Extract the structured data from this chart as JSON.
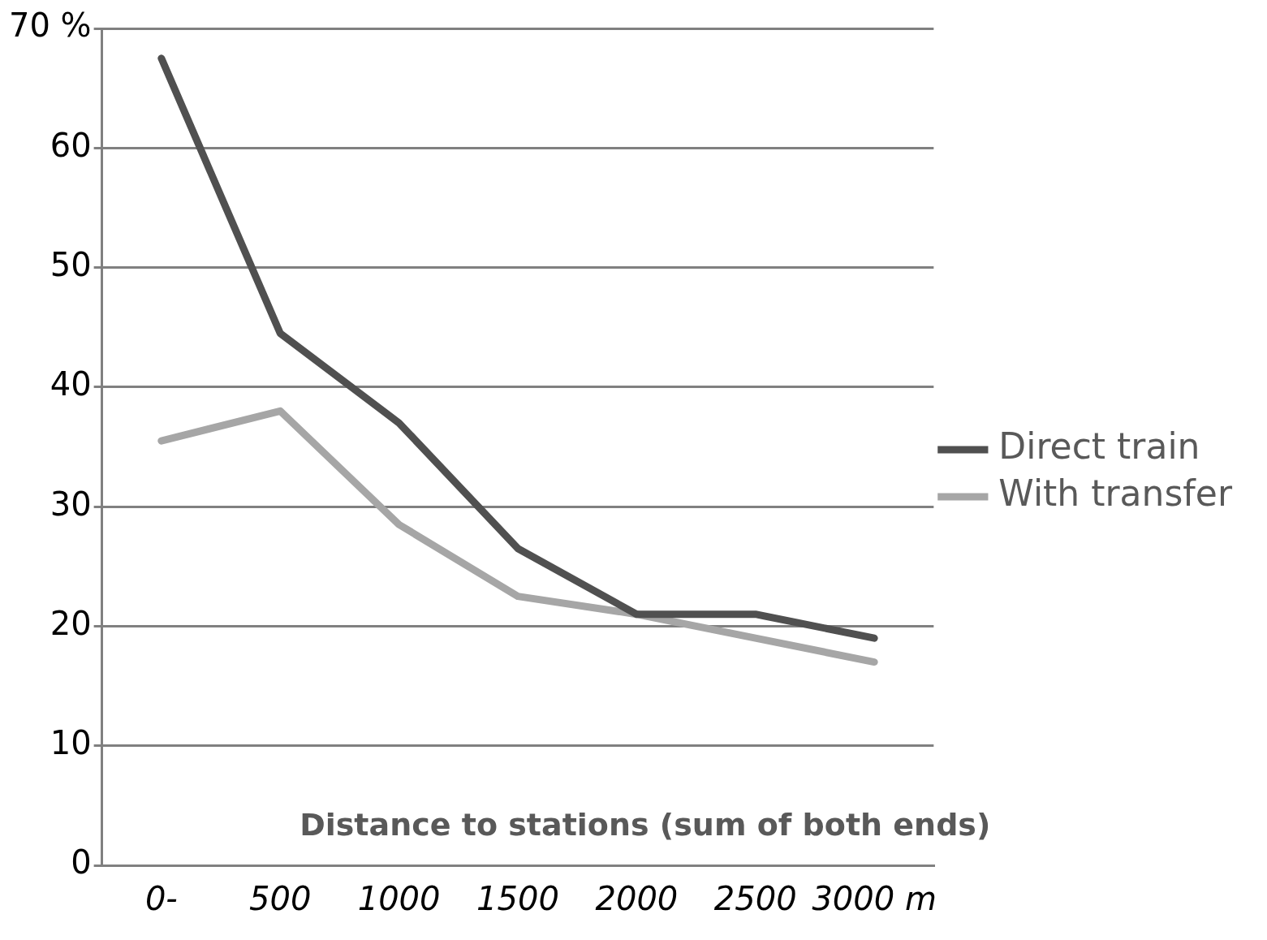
{
  "chart_data": {
    "type": "line",
    "xlabel": "Distance to stations (sum of both ends)",
    "categories": [
      "0-",
      "500",
      "1000",
      "1500",
      "2000",
      "2500",
      "3000 m"
    ],
    "series": [
      {
        "name": "Direct train",
        "color": "#505050",
        "values": [
          67.5,
          44.5,
          37,
          26.5,
          21,
          21,
          19
        ]
      },
      {
        "name": "With transfer",
        "color": "#a6a6a6",
        "values": [
          35.5,
          38,
          28.5,
          22.5,
          21,
          19,
          17
        ]
      }
    ],
    "ylim": [
      0,
      70
    ],
    "yticks": [
      0,
      10,
      20,
      30,
      40,
      50,
      60,
      {
        "value": 70,
        "label": "70 %"
      }
    ],
    "grid": "y",
    "legend": "right",
    "marker": "none",
    "line_style": "solid"
  }
}
